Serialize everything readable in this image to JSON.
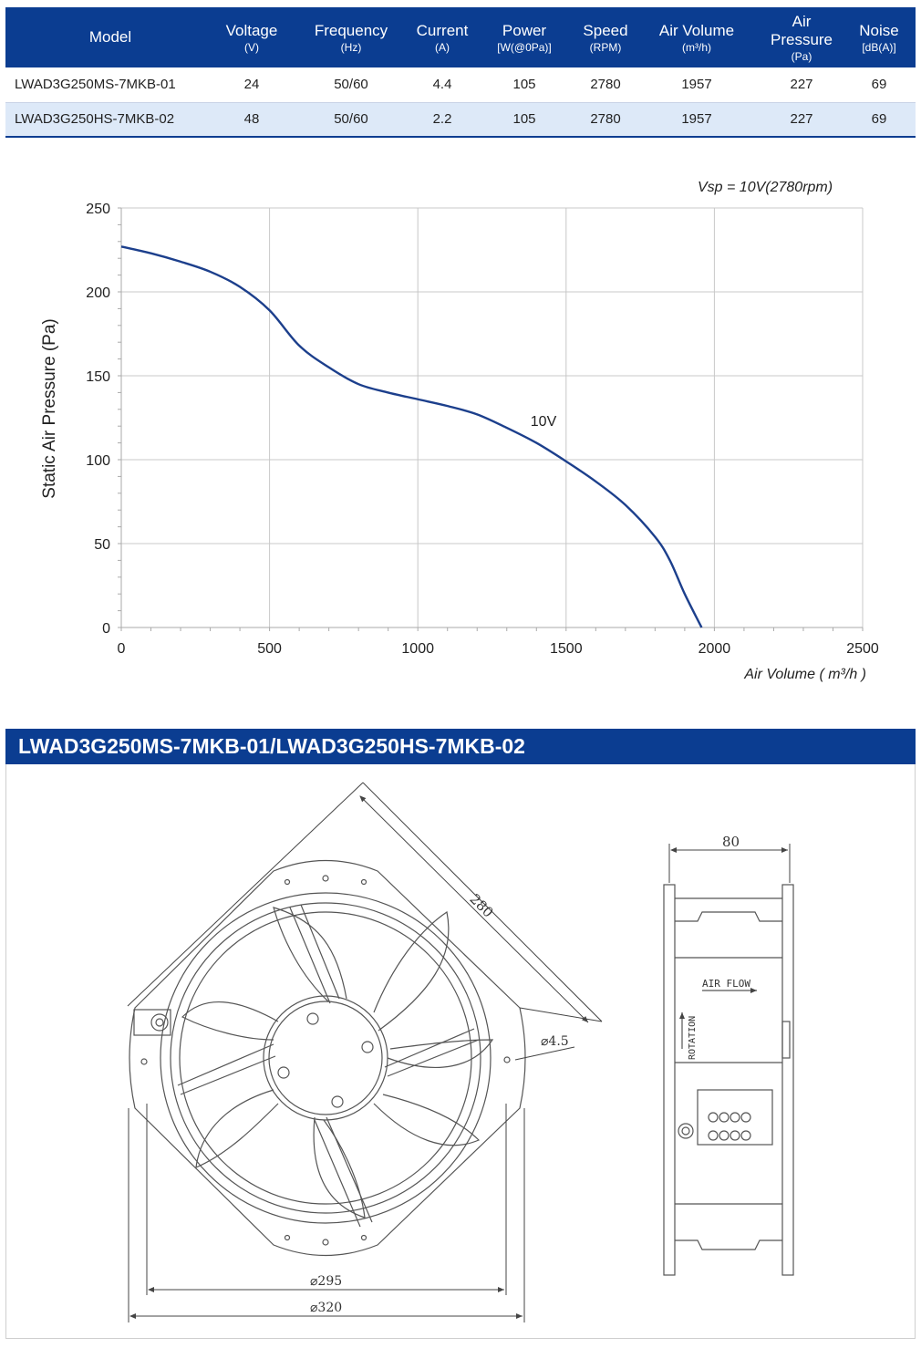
{
  "spec_table": {
    "headers": [
      {
        "label": "Model",
        "unit": ""
      },
      {
        "label": "Voltage",
        "unit": "(V)"
      },
      {
        "label": "Frequency",
        "unit": "(Hz)"
      },
      {
        "label": "Current",
        "unit": "(A)"
      },
      {
        "label": "Power",
        "unit": "[W(@0Pa)]"
      },
      {
        "label": "Speed",
        "unit": "(RPM)"
      },
      {
        "label": "Air Volume",
        "unit": "(m³/h)"
      },
      {
        "label": "Air Pressure",
        "unit": "(Pa)"
      },
      {
        "label": "Noise",
        "unit": "[dB(A)]"
      }
    ],
    "rows": [
      [
        "LWAD3G250MS-7MKB-01",
        "24",
        "50/60",
        "4.4",
        "105",
        "2780",
        "1957",
        "227",
        "69"
      ],
      [
        "LWAD3G250HS-7MKB-02",
        "48",
        "50/60",
        "2.2",
        "105",
        "2780",
        "1957",
        "227",
        "69"
      ]
    ]
  },
  "chart_data": {
    "type": "line",
    "title": "",
    "annotation": "Vsp = 10V(2780rpm)",
    "xlabel": "Air Volume ( m³/h )",
    "ylabel": "Static Air Pressure  (Pa)",
    "xlim": [
      0,
      2500
    ],
    "ylim": [
      0,
      250
    ],
    "x_ticks": [
      0,
      500,
      1000,
      1500,
      2000,
      2500
    ],
    "y_ticks": [
      0,
      50,
      100,
      150,
      200,
      250
    ],
    "grid": true,
    "series": [
      {
        "name": "10V",
        "color": "#1c3f8c",
        "x": [
          0,
          100,
          200,
          300,
          400,
          500,
          600,
          700,
          800,
          900,
          1000,
          1100,
          1200,
          1300,
          1400,
          1500,
          1600,
          1700,
          1800,
          1850,
          1900,
          1957
        ],
        "y": [
          227,
          223,
          218,
          212,
          203,
          189,
          168,
          155,
          145,
          140,
          136,
          132,
          127,
          119,
          110,
          99,
          87,
          73,
          54,
          40,
          20,
          0
        ]
      }
    ]
  },
  "section": {
    "title": "LWAD3G250MS-7MKB-01/LWAD3G250HS-7MKB-02"
  },
  "drawing": {
    "dim_diag": "280",
    "dim_hole": "⌀4.5",
    "dim_inner": "⌀295",
    "dim_outer": "⌀320",
    "dim_depth": "80",
    "label_airflow": "AIR FLOW",
    "label_rotation": "ROTATION"
  },
  "colors": {
    "header_blue": "#0b3d91",
    "row_alt": "#dde9f8",
    "curve": "#1c3f8c"
  }
}
